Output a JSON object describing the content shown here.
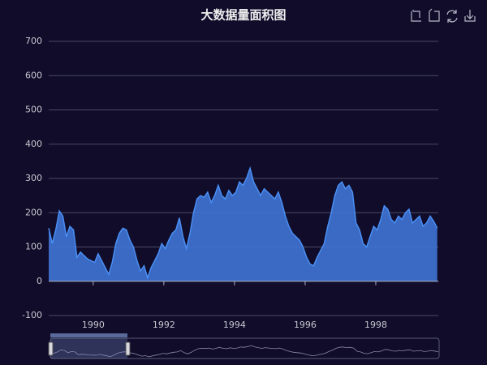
{
  "chart_data": {
    "type": "area",
    "title": "大数据量面积图",
    "x": [
      1988.74,
      1988.84,
      1988.94,
      1989.04,
      1989.14,
      1989.24,
      1989.34,
      1989.44,
      1989.54,
      1989.64,
      1989.74,
      1989.84,
      1989.94,
      1990.04,
      1990.14,
      1990.24,
      1990.34,
      1990.44,
      1990.54,
      1990.64,
      1990.74,
      1990.84,
      1990.94,
      1991.04,
      1991.14,
      1991.24,
      1991.34,
      1991.44,
      1991.54,
      1991.64,
      1991.74,
      1991.84,
      1991.94,
      1992.04,
      1992.14,
      1992.24,
      1992.34,
      1992.44,
      1992.54,
      1992.64,
      1992.74,
      1992.84,
      1992.94,
      1993.04,
      1993.14,
      1993.24,
      1993.34,
      1993.44,
      1993.54,
      1993.64,
      1993.74,
      1993.84,
      1993.94,
      1994.04,
      1994.14,
      1994.24,
      1994.34,
      1994.44,
      1994.54,
      1994.64,
      1994.74,
      1994.84,
      1994.94,
      1995.04,
      1995.14,
      1995.24,
      1995.34,
      1995.44,
      1995.54,
      1995.64,
      1995.74,
      1995.84,
      1995.94,
      1996.04,
      1996.14,
      1996.24,
      1996.34,
      1996.44,
      1996.54,
      1996.64,
      1996.74,
      1996.84,
      1996.94,
      1997.04,
      1997.14,
      1997.24,
      1997.34,
      1997.44,
      1997.54,
      1997.64,
      1997.74,
      1997.84,
      1997.94,
      1998.04,
      1998.14,
      1998.24,
      1998.34,
      1998.44,
      1998.54,
      1998.64,
      1998.74,
      1998.84,
      1998.94,
      1999.04,
      1999.14,
      1999.24,
      1999.34,
      1999.44,
      1999.54,
      1999.64,
      1999.74
    ],
    "values": [
      155,
      110,
      150,
      205,
      190,
      130,
      160,
      150,
      70,
      85,
      75,
      65,
      60,
      55,
      80,
      60,
      40,
      20,
      55,
      110,
      140,
      155,
      150,
      120,
      100,
      60,
      30,
      45,
      10,
      40,
      60,
      80,
      110,
      95,
      120,
      140,
      150,
      185,
      130,
      95,
      140,
      200,
      240,
      250,
      245,
      260,
      230,
      250,
      280,
      250,
      240,
      265,
      250,
      260,
      290,
      280,
      300,
      330,
      290,
      270,
      250,
      270,
      260,
      250,
      240,
      260,
      230,
      190,
      160,
      140,
      130,
      120,
      100,
      70,
      50,
      45,
      70,
      90,
      110,
      160,
      200,
      250,
      280,
      290,
      270,
      280,
      260,
      170,
      150,
      110,
      100,
      130,
      160,
      150,
      180,
      220,
      210,
      180,
      170,
      190,
      180,
      200,
      210,
      170,
      180,
      190,
      160,
      170,
      190,
      175,
      155
    ],
    "color": "#3f74d4",
    "line_color": "#4a8ff5",
    "xlim": [
      1988.74,
      1999.77
    ],
    "xticks": [
      1990,
      1992,
      1994,
      1996,
      1998
    ],
    "ylim": [
      -100,
      700
    ],
    "yticks": [
      -100,
      0,
      100,
      200,
      300,
      400,
      500,
      600,
      700
    ],
    "grid": true
  }
}
